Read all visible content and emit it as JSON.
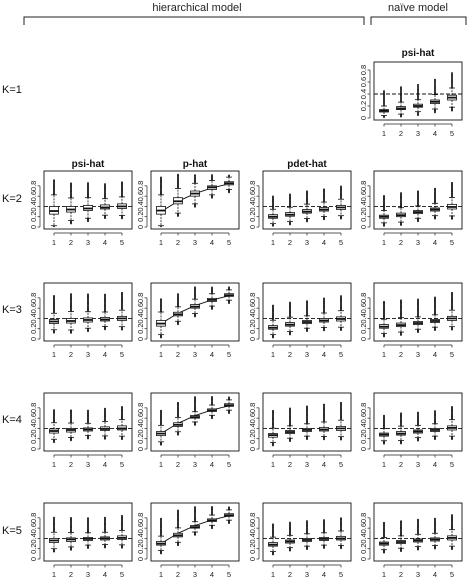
{
  "sections": {
    "hierarchical": "hierarchical model",
    "naive": "naïve model"
  },
  "rows": [
    {
      "id": "k1",
      "label": "K=1"
    },
    {
      "id": "k2",
      "label": "K=2"
    },
    {
      "id": "k3",
      "label": "K=3"
    },
    {
      "id": "k4",
      "label": "K=4"
    },
    {
      "id": "k5",
      "label": "K=5"
    }
  ],
  "column_titles": {
    "psi": "psi-hat",
    "p": "p-hat",
    "pdet": "pdet-hat",
    "naive": "psi-hat"
  },
  "colors": {
    "box_fill": "#ffffff",
    "stroke": "#111111",
    "reference_line": "#111111"
  },
  "chart_data": [
    {
      "type": "boxplot",
      "row": "K=1",
      "column": "naive",
      "title": "psi-hat",
      "categories": [
        "1",
        "2",
        "3",
        "4",
        "5"
      ],
      "medians": [
        0.12,
        0.16,
        0.2,
        0.27,
        0.34
      ],
      "q1": [
        0.1,
        0.14,
        0.18,
        0.24,
        0.3
      ],
      "q3": [
        0.14,
        0.19,
        0.23,
        0.3,
        0.38
      ],
      "reference": {
        "style": "dashed",
        "value": 0.4
      },
      "ylim": [
        0,
        0.9
      ],
      "yticks": [
        0,
        0.2,
        0.4,
        0.6,
        0.8
      ]
    },
    {
      "type": "boxplot",
      "row": "K=2",
      "column": "psi",
      "title": "psi-hat",
      "categories": [
        "1",
        "2",
        "3",
        "4",
        "5"
      ],
      "medians": [
        0.31,
        0.34,
        0.36,
        0.38,
        0.4
      ],
      "q1": [
        0.25,
        0.29,
        0.32,
        0.35,
        0.36
      ],
      "q3": [
        0.4,
        0.4,
        0.42,
        0.43,
        0.45
      ],
      "reference": {
        "style": "dashed",
        "value": 0.4
      },
      "ylim": [
        0,
        1.05
      ],
      "yticks": [
        0,
        0.2,
        0.4,
        0.6,
        0.8
      ]
    },
    {
      "type": "boxplot",
      "row": "K=2",
      "column": "p",
      "title": "p-hat",
      "categories": [
        "1",
        "2",
        "3",
        "4",
        "5"
      ],
      "medians": [
        0.32,
        0.5,
        0.65,
        0.77,
        0.85
      ],
      "q1": [
        0.25,
        0.45,
        0.6,
        0.73,
        0.82
      ],
      "q3": [
        0.4,
        0.57,
        0.7,
        0.8,
        0.88
      ],
      "reference": {
        "style": "curve",
        "values": [
          0.3,
          0.5,
          0.65,
          0.76,
          0.84
        ]
      },
      "ylim": [
        0,
        1.05
      ],
      "yticks": [
        0,
        0.2,
        0.4,
        0.6,
        0.8
      ]
    },
    {
      "type": "boxplot",
      "row": "K=2",
      "column": "pdet",
      "title": "pdet-hat",
      "categories": [
        "1",
        "2",
        "3",
        "4",
        "5"
      ],
      "medians": [
        0.2,
        0.24,
        0.3,
        0.34,
        0.38
      ],
      "q1": [
        0.17,
        0.21,
        0.27,
        0.31,
        0.34
      ],
      "q3": [
        0.24,
        0.28,
        0.34,
        0.38,
        0.42
      ],
      "reference": {
        "style": "dashed",
        "value": 0.4
      },
      "ylim": [
        0,
        1.05
      ],
      "yticks": [
        0,
        0.2,
        0.4,
        0.6,
        0.8
      ]
    },
    {
      "type": "boxplot",
      "row": "K=2",
      "column": "naive",
      "title": "",
      "categories": [
        "1",
        "2",
        "3",
        "4",
        "5"
      ],
      "medians": [
        0.2,
        0.23,
        0.29,
        0.34,
        0.39
      ],
      "q1": [
        0.17,
        0.2,
        0.26,
        0.31,
        0.35
      ],
      "q3": [
        0.23,
        0.27,
        0.32,
        0.37,
        0.44
      ],
      "reference": {
        "style": "dashed",
        "value": 0.4
      },
      "ylim": [
        0,
        1.05
      ],
      "yticks": [
        0,
        0.2,
        0.4,
        0.6,
        0.8
      ]
    },
    {
      "type": "boxplot",
      "row": "K=3",
      "column": "psi",
      "title": "",
      "categories": [
        "1",
        "2",
        "3",
        "4",
        "5"
      ],
      "medians": [
        0.34,
        0.35,
        0.37,
        0.38,
        0.4
      ],
      "q1": [
        0.3,
        0.31,
        0.33,
        0.35,
        0.36
      ],
      "q3": [
        0.38,
        0.4,
        0.41,
        0.42,
        0.44
      ],
      "reference": {
        "style": "dashed",
        "value": 0.4
      },
      "ylim": [
        0,
        1.05
      ],
      "yticks": [
        0,
        0.2,
        0.4,
        0.6,
        0.8
      ]
    },
    {
      "type": "boxplot",
      "row": "K=3",
      "column": "p",
      "title": "",
      "categories": [
        "1",
        "2",
        "3",
        "4",
        "5"
      ],
      "medians": [
        0.3,
        0.48,
        0.63,
        0.76,
        0.85
      ],
      "q1": [
        0.25,
        0.45,
        0.6,
        0.73,
        0.83
      ],
      "q3": [
        0.36,
        0.52,
        0.67,
        0.79,
        0.88
      ],
      "reference": {
        "style": "curve",
        "values": [
          0.3,
          0.5,
          0.65,
          0.76,
          0.84
        ]
      },
      "ylim": [
        0,
        1.05
      ],
      "yticks": [
        0,
        0.2,
        0.4,
        0.6,
        0.8
      ]
    },
    {
      "type": "boxplot",
      "row": "K=3",
      "column": "pdet",
      "title": "",
      "categories": [
        "1",
        "2",
        "3",
        "4",
        "5"
      ],
      "medians": [
        0.22,
        0.28,
        0.33,
        0.36,
        0.39
      ],
      "q1": [
        0.19,
        0.25,
        0.3,
        0.33,
        0.35
      ],
      "q3": [
        0.26,
        0.32,
        0.36,
        0.4,
        0.43
      ],
      "reference": {
        "style": "dashed",
        "value": 0.4
      },
      "ylim": [
        0,
        1.05
      ],
      "yticks": [
        0,
        0.2,
        0.4,
        0.6,
        0.8
      ]
    },
    {
      "type": "boxplot",
      "row": "K=3",
      "column": "naive",
      "title": "",
      "categories": [
        "1",
        "2",
        "3",
        "4",
        "5"
      ],
      "medians": [
        0.24,
        0.27,
        0.31,
        0.35,
        0.4
      ],
      "q1": [
        0.21,
        0.24,
        0.28,
        0.32,
        0.36
      ],
      "q3": [
        0.28,
        0.31,
        0.34,
        0.38,
        0.44
      ],
      "reference": {
        "style": "dashed",
        "value": 0.4
      },
      "ylim": [
        0,
        1.05
      ],
      "yticks": [
        0,
        0.2,
        0.4,
        0.6,
        0.8
      ]
    },
    {
      "type": "boxplot",
      "row": "K=4",
      "column": "psi",
      "title": "",
      "categories": [
        "1",
        "2",
        "3",
        "4",
        "5"
      ],
      "medians": [
        0.35,
        0.37,
        0.38,
        0.39,
        0.4
      ],
      "q1": [
        0.31,
        0.33,
        0.35,
        0.36,
        0.37
      ],
      "q3": [
        0.39,
        0.4,
        0.41,
        0.43,
        0.45
      ],
      "reference": {
        "style": "dashed",
        "value": 0.4
      },
      "ylim": [
        0,
        1.05
      ],
      "yticks": [
        0,
        0.2,
        0.4,
        0.6,
        0.8
      ]
    },
    {
      "type": "boxplot",
      "row": "K=4",
      "column": "p",
      "title": "",
      "categories": [
        "1",
        "2",
        "3",
        "4",
        "5"
      ],
      "medians": [
        0.3,
        0.47,
        0.62,
        0.75,
        0.85
      ],
      "q1": [
        0.26,
        0.44,
        0.6,
        0.73,
        0.83
      ],
      "q3": [
        0.34,
        0.51,
        0.65,
        0.78,
        0.88
      ],
      "reference": {
        "style": "curve",
        "values": [
          0.3,
          0.5,
          0.65,
          0.76,
          0.84
        ]
      },
      "ylim": [
        0,
        1.05
      ],
      "yticks": [
        0,
        0.2,
        0.4,
        0.6,
        0.8
      ]
    },
    {
      "type": "boxplot",
      "row": "K=4",
      "column": "pdet",
      "title": "",
      "categories": [
        "1",
        "2",
        "3",
        "4",
        "5"
      ],
      "medians": [
        0.27,
        0.33,
        0.37,
        0.38,
        0.4
      ],
      "q1": [
        0.23,
        0.3,
        0.34,
        0.35,
        0.36
      ],
      "q3": [
        0.3,
        0.36,
        0.4,
        0.42,
        0.44
      ],
      "reference": {
        "style": "dashed",
        "value": 0.4
      },
      "ylim": [
        0,
        1.05
      ],
      "yticks": [
        0,
        0.2,
        0.4,
        0.6,
        0.8
      ]
    },
    {
      "type": "boxplot",
      "row": "K=4",
      "column": "naive",
      "title": "",
      "categories": [
        "1",
        "2",
        "3",
        "4",
        "5"
      ],
      "medians": [
        0.28,
        0.3,
        0.34,
        0.37,
        0.41
      ],
      "q1": [
        0.25,
        0.27,
        0.31,
        0.34,
        0.37
      ],
      "q3": [
        0.31,
        0.34,
        0.37,
        0.4,
        0.45
      ],
      "reference": {
        "style": "dashed",
        "value": 0.4
      },
      "ylim": [
        0,
        1.05
      ],
      "yticks": [
        0,
        0.2,
        0.4,
        0.6,
        0.8
      ]
    },
    {
      "type": "boxplot",
      "row": "K=5",
      "column": "psi",
      "title": "",
      "categories": [
        "1",
        "2",
        "3",
        "4",
        "5"
      ],
      "medians": [
        0.36,
        0.38,
        0.39,
        0.4,
        0.41
      ],
      "q1": [
        0.32,
        0.34,
        0.36,
        0.37,
        0.38
      ],
      "q3": [
        0.4,
        0.41,
        0.42,
        0.43,
        0.45
      ],
      "reference": {
        "style": "dashed",
        "value": 0.4
      },
      "ylim": [
        0,
        1.05
      ],
      "yticks": [
        0,
        0.2,
        0.4,
        0.6,
        0.8
      ]
    },
    {
      "type": "boxplot",
      "row": "K=5",
      "column": "p",
      "title": "",
      "categories": [
        "1",
        "2",
        "3",
        "4",
        "5"
      ],
      "medians": [
        0.3,
        0.46,
        0.62,
        0.75,
        0.85
      ],
      "q1": [
        0.27,
        0.43,
        0.6,
        0.73,
        0.83
      ],
      "q3": [
        0.34,
        0.5,
        0.65,
        0.78,
        0.88
      ],
      "reference": {
        "style": "curve",
        "values": [
          0.3,
          0.5,
          0.65,
          0.76,
          0.84
        ]
      },
      "ylim": [
        0,
        1.05
      ],
      "yticks": [
        0,
        0.2,
        0.4,
        0.6,
        0.8
      ]
    },
    {
      "type": "boxplot",
      "row": "K=5",
      "column": "pdet",
      "title": "",
      "categories": [
        "1",
        "2",
        "3",
        "4",
        "5"
      ],
      "medians": [
        0.28,
        0.34,
        0.37,
        0.39,
        0.4
      ],
      "q1": [
        0.25,
        0.31,
        0.34,
        0.36,
        0.37
      ],
      "q3": [
        0.32,
        0.37,
        0.4,
        0.42,
        0.44
      ],
      "reference": {
        "style": "dashed",
        "value": 0.4
      },
      "ylim": [
        0,
        1.05
      ],
      "yticks": [
        0,
        0.2,
        0.4,
        0.6,
        0.8
      ]
    },
    {
      "type": "boxplot",
      "row": "K=5",
      "column": "naive",
      "title": "",
      "categories": [
        "1",
        "2",
        "3",
        "4",
        "5"
      ],
      "medians": [
        0.3,
        0.33,
        0.36,
        0.38,
        0.41
      ],
      "q1": [
        0.27,
        0.3,
        0.33,
        0.35,
        0.37
      ],
      "q3": [
        0.33,
        0.36,
        0.39,
        0.41,
        0.45
      ],
      "reference": {
        "style": "dashed",
        "value": 0.4
      },
      "ylim": [
        0,
        1.05
      ],
      "yticks": [
        0,
        0.2,
        0.4,
        0.6,
        0.8
      ]
    }
  ]
}
